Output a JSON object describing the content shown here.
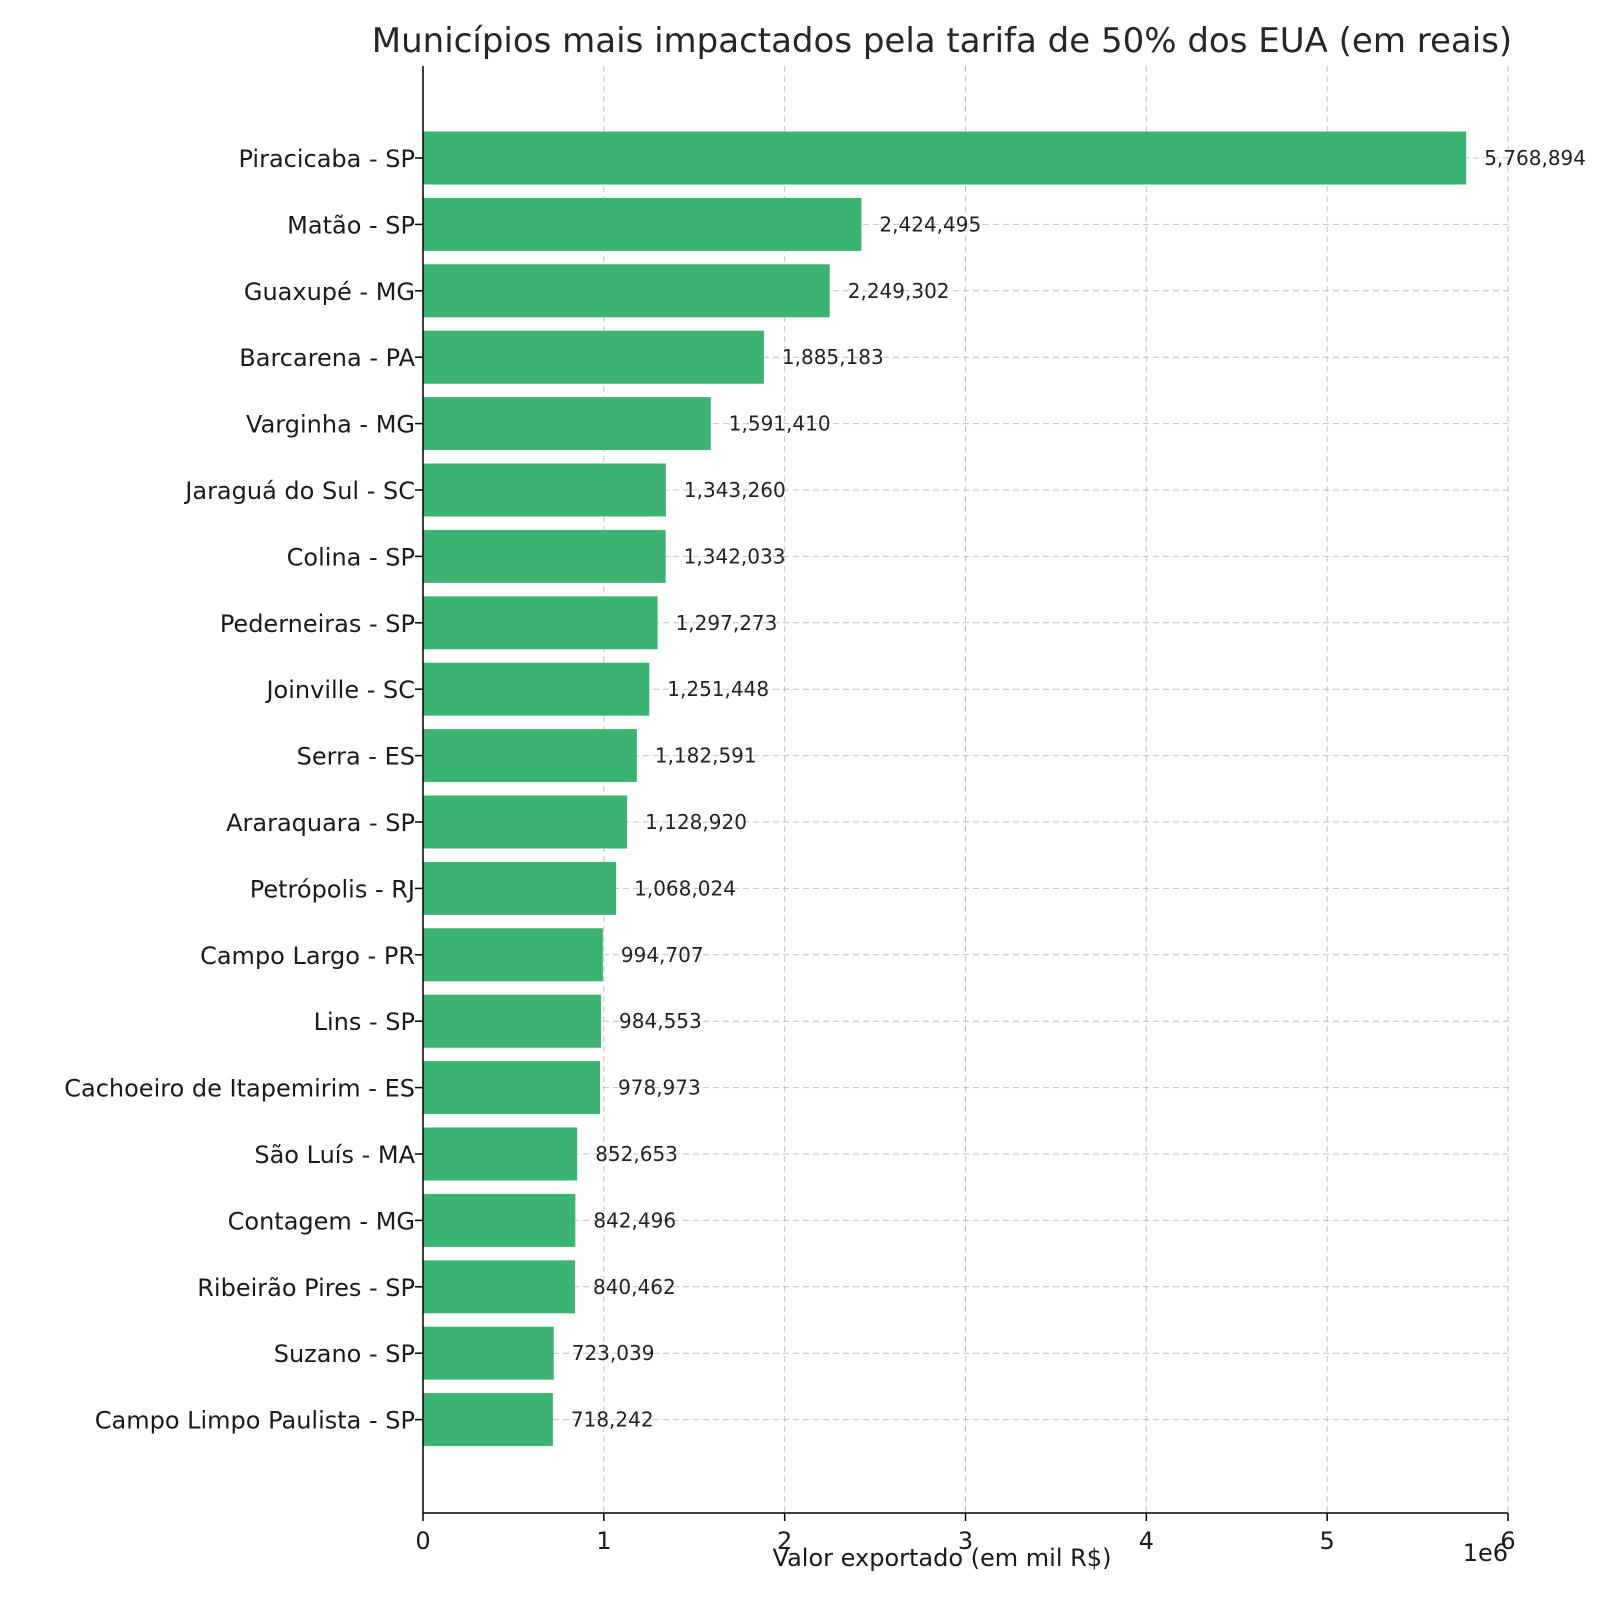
{
  "chart_data": {
    "type": "bar",
    "orientation": "horizontal",
    "title": "Municípios mais impactados pela tarifa de 50% dos EUA (em reais)",
    "xlabel": "Valor exportado (em mil R$)",
    "ylabel": "",
    "x_scale_label": "1e6",
    "xlim": [
      0,
      6000000
    ],
    "x_ticks": [
      0,
      1000000,
      2000000,
      3000000,
      4000000,
      5000000,
      6000000
    ],
    "x_tick_labels": [
      "0",
      "1",
      "2",
      "3",
      "4",
      "5",
      "6"
    ],
    "grid": true,
    "bar_color": "#3cb371",
    "categories": [
      "Piracicaba - SP",
      "Matão - SP",
      "Guaxupé - MG",
      "Barcarena - PA",
      "Varginha - MG",
      "Jaraguá do Sul - SC",
      "Colina - SP",
      "Pederneiras - SP",
      "Joinville - SC",
      "Serra - ES",
      "Araraquara - SP",
      "Petrópolis - RJ",
      "Campo Largo - PR",
      "Lins - SP",
      "Cachoeiro de Itapemirim - ES",
      "São Luís - MA",
      "Contagem - MG",
      "Ribeirão Pires - SP",
      "Suzano - SP",
      "Campo Limpo Paulista - SP"
    ],
    "values": [
      5768894,
      2424495,
      2249302,
      1885183,
      1591410,
      1343260,
      1342033,
      1297273,
      1251448,
      1182591,
      1128920,
      1068024,
      994707,
      984553,
      978973,
      852653,
      842496,
      840462,
      723039,
      718242
    ],
    "value_labels": [
      "5,768,894",
      "2,424,495",
      "2,249,302",
      "1,885,183",
      "1,591,410",
      "1,343,260",
      "1,342,033",
      "1,297,273",
      "1,251,448",
      "1,182,591",
      "1,128,920",
      "1,068,024",
      "994,707",
      "984,553",
      "978,973",
      "852,653",
      "842,496",
      "840,462",
      "723,039",
      "718,242"
    ]
  }
}
